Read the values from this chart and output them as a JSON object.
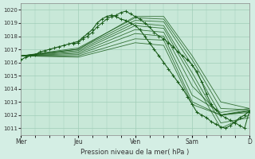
{
  "title": "",
  "xlabel": "Pression niveau de la mer( hPa )",
  "ylabel": "",
  "bg_color": "#d4eee4",
  "plot_bg_color": "#c8e8d8",
  "line_color": "#1a5c1a",
  "grid_color": "#a0cdb8",
  "ylim": [
    1010.5,
    1020.5
  ],
  "yticks": [
    1011,
    1012,
    1013,
    1014,
    1015,
    1016,
    1017,
    1018,
    1019,
    1020
  ],
  "xtick_labels": [
    "Mer",
    "Jeu",
    "Ven",
    "Sam",
    "D"
  ],
  "xtick_positions": [
    0,
    48,
    96,
    144,
    192
  ],
  "total_points": 192,
  "observed_line": {
    "x": [
      0,
      4,
      8,
      12,
      16,
      20,
      24,
      28,
      32,
      36,
      40,
      44,
      48,
      52,
      56,
      60,
      64,
      68,
      72,
      76,
      80,
      84,
      88,
      92,
      96,
      100,
      104,
      108,
      112,
      116,
      120,
      124,
      128,
      132,
      136,
      140,
      144,
      148,
      152,
      156,
      160,
      164,
      168,
      172,
      176,
      180,
      184,
      188,
      192
    ],
    "y": [
      1016.2,
      1016.4,
      1016.5,
      1016.6,
      1016.8,
      1016.9,
      1017.0,
      1017.1,
      1017.2,
      1017.3,
      1017.4,
      1017.5,
      1017.6,
      1017.9,
      1018.2,
      1018.5,
      1019.0,
      1019.3,
      1019.5,
      1019.6,
      1019.5,
      1019.3,
      1019.2,
      1019.0,
      1018.8,
      1018.5,
      1018.0,
      1017.5,
      1017.0,
      1016.5,
      1016.0,
      1015.5,
      1015.0,
      1014.5,
      1014.0,
      1013.4,
      1012.8,
      1012.2,
      1012.0,
      1011.8,
      1011.5,
      1011.3,
      1011.1,
      1011.0,
      1011.2,
      1011.5,
      1011.8,
      1012.0,
      1012.3
    ]
  },
  "forecast_lines": [
    {
      "x": [
        0,
        48,
        96,
        120,
        144,
        168,
        192
      ],
      "y": [
        1016.5,
        1017.0,
        1019.5,
        1019.5,
        1016.5,
        1013.0,
        1012.5
      ]
    },
    {
      "x": [
        0,
        48,
        96,
        120,
        144,
        168,
        192
      ],
      "y": [
        1016.5,
        1017.1,
        1019.4,
        1019.3,
        1016.2,
        1012.5,
        1012.4
      ]
    },
    {
      "x": [
        0,
        48,
        96,
        120,
        144,
        168,
        192
      ],
      "y": [
        1016.5,
        1017.0,
        1019.2,
        1019.1,
        1015.8,
        1012.0,
        1012.2
      ]
    },
    {
      "x": [
        0,
        48,
        96,
        120,
        144,
        168,
        192
      ],
      "y": [
        1016.5,
        1016.9,
        1019.0,
        1018.8,
        1015.2,
        1011.4,
        1011.8
      ]
    },
    {
      "x": [
        0,
        48,
        96,
        120,
        144,
        168,
        192
      ],
      "y": [
        1016.5,
        1016.8,
        1018.8,
        1018.6,
        1014.8,
        1011.0,
        1012.0
      ]
    },
    {
      "x": [
        0,
        48,
        96,
        120,
        144,
        168,
        192
      ],
      "y": [
        1016.5,
        1016.7,
        1018.5,
        1018.3,
        1014.2,
        1012.0,
        1012.4
      ]
    },
    {
      "x": [
        0,
        48,
        96,
        120,
        144,
        168,
        192
      ],
      "y": [
        1016.5,
        1016.6,
        1018.2,
        1018.0,
        1013.5,
        1012.2,
        1012.5
      ]
    },
    {
      "x": [
        0,
        48,
        96,
        120,
        144,
        168,
        192
      ],
      "y": [
        1016.5,
        1016.5,
        1017.8,
        1017.7,
        1013.0,
        1012.0,
        1012.3
      ]
    },
    {
      "x": [
        0,
        48,
        96,
        120,
        144,
        168,
        192
      ],
      "y": [
        1016.5,
        1016.4,
        1017.5,
        1017.3,
        1012.8,
        1012.0,
        1012.3
      ]
    }
  ],
  "jagged_line": {
    "x": [
      44,
      48,
      52,
      56,
      60,
      64,
      68,
      72,
      76,
      80,
      84,
      88,
      92,
      96,
      100,
      104,
      108,
      112,
      116,
      120,
      124,
      128,
      132,
      136,
      140,
      144,
      148,
      152,
      156,
      160,
      164,
      168,
      172,
      176,
      180,
      184,
      188,
      192
    ],
    "y": [
      1017.4,
      1017.5,
      1017.8,
      1018.0,
      1018.3,
      1018.7,
      1019.0,
      1019.3,
      1019.5,
      1019.6,
      1019.8,
      1019.9,
      1019.7,
      1019.5,
      1019.3,
      1019.0,
      1018.7,
      1018.3,
      1018.0,
      1017.8,
      1017.5,
      1017.2,
      1016.8,
      1016.5,
      1016.2,
      1015.8,
      1015.3,
      1014.5,
      1013.6,
      1012.8,
      1012.4,
      1012.0,
      1011.8,
      1011.6,
      1011.4,
      1011.2,
      1011.0,
      1012.3
    ]
  }
}
